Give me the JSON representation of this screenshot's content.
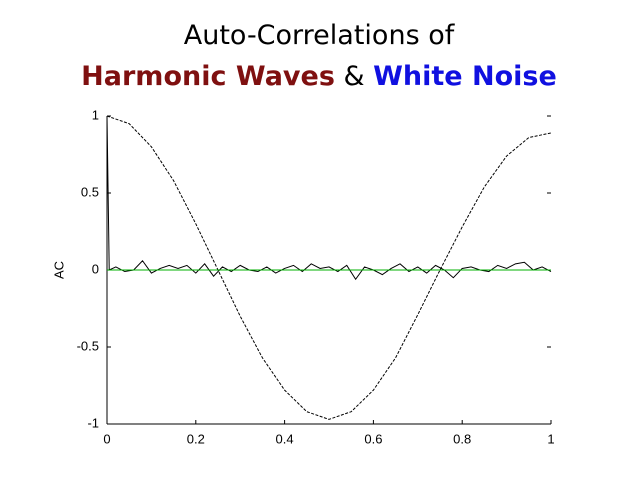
{
  "chart_data": {
    "type": "line",
    "title": "Auto-Correlations of",
    "title_parts": [
      {
        "text": "Harmonic Waves",
        "color": "#7f1010",
        "bold": true
      },
      {
        "text": "&",
        "color": "#000000",
        "bold": false
      },
      {
        "text": "White Noise",
        "color": "#1010e0",
        "bold": true
      }
    ],
    "y_label": "AC",
    "xlim": [
      0,
      1
    ],
    "ylim": [
      -1,
      1
    ],
    "xticks": [
      0,
      0.2,
      0.4,
      0.6,
      0.8,
      1
    ],
    "yticks": [
      -1,
      -0.5,
      0,
      0.5,
      1
    ],
    "grid": false,
    "series": [
      {
        "color": "#000000",
        "dash": true,
        "x": [
          0,
          0.05,
          0.1,
          0.15,
          0.2,
          0.25,
          0.3,
          0.35,
          0.4,
          0.45,
          0.5,
          0.55,
          0.6,
          0.65,
          0.7,
          0.75,
          0.8,
          0.85,
          0.9,
          0.95,
          1
        ],
        "values": [
          1,
          0.95,
          0.8,
          0.58,
          0.3,
          0.0,
          -0.3,
          -0.57,
          -0.78,
          -0.92,
          -0.97,
          -0.92,
          -0.78,
          -0.57,
          -0.29,
          0.0,
          0.28,
          0.54,
          0.74,
          0.86,
          0.89
        ]
      },
      {
        "color": "#000000",
        "dash": false,
        "x": [
          0,
          0.005,
          0.02,
          0.04,
          0.06,
          0.08,
          0.1,
          0.12,
          0.14,
          0.16,
          0.18,
          0.2,
          0.22,
          0.24,
          0.26,
          0.28,
          0.3,
          0.32,
          0.34,
          0.36,
          0.38,
          0.4,
          0.42,
          0.44,
          0.46,
          0.48,
          0.5,
          0.52,
          0.54,
          0.56,
          0.58,
          0.6,
          0.62,
          0.64,
          0.66,
          0.68,
          0.7,
          0.72,
          0.74,
          0.76,
          0.78,
          0.8,
          0.82,
          0.84,
          0.86,
          0.88,
          0.9,
          0.92,
          0.94,
          0.96,
          0.98,
          1
        ],
        "values": [
          1,
          0.0,
          0.02,
          -0.01,
          0.0,
          0.06,
          -0.02,
          0.01,
          0.03,
          0.01,
          0.03,
          -0.02,
          0.04,
          -0.04,
          0.02,
          -0.01,
          0.03,
          0.0,
          -0.01,
          0.02,
          -0.02,
          0.01,
          0.03,
          -0.01,
          0.04,
          0.01,
          0.02,
          -0.01,
          0.03,
          -0.06,
          0.02,
          0.0,
          -0.03,
          0.01,
          0.04,
          -0.01,
          0.02,
          -0.02,
          0.03,
          0.0,
          -0.05,
          0.01,
          0.02,
          0.0,
          -0.01,
          0.03,
          0.01,
          0.04,
          0.05,
          0.0,
          0.02,
          -0.01
        ]
      },
      {
        "color": "#00b000",
        "dash": false,
        "x": [
          0,
          1
        ],
        "values": [
          0,
          0
        ]
      }
    ]
  }
}
